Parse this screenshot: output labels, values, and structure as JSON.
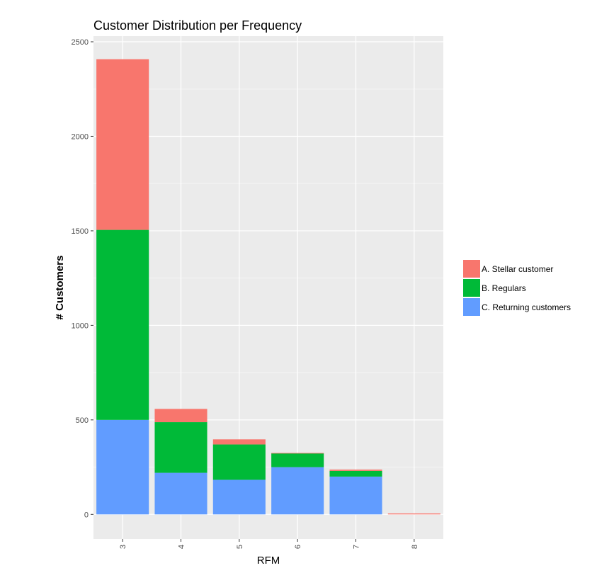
{
  "chart_data": {
    "type": "bar",
    "stacked": true,
    "title": "Customer Distribution per Frequency",
    "xlabel": "RFM",
    "ylabel": "# Customers",
    "categories": [
      "3",
      "4",
      "5",
      "6",
      "7",
      "8"
    ],
    "ylim": [
      -130,
      2530
    ],
    "yticks": [
      0,
      500,
      1000,
      1500,
      2000,
      2500
    ],
    "grid": true,
    "background": "#ebebeb",
    "legend_position": "right",
    "series": [
      {
        "name": "C. Returning customers",
        "color": "#619cff",
        "values": [
          500,
          220,
          183,
          250,
          200,
          0
        ]
      },
      {
        "name": "B. Regulars",
        "color": "#00ba38",
        "values": [
          1005,
          268,
          187,
          73,
          30,
          0
        ]
      },
      {
        "name": "A. Stellar customer",
        "color": "#f8766d",
        "values": [
          903,
          70,
          27,
          2,
          7,
          5
        ]
      }
    ],
    "legend_order": [
      "A. Stellar customer",
      "B. Regulars",
      "C. Returning customers"
    ]
  }
}
